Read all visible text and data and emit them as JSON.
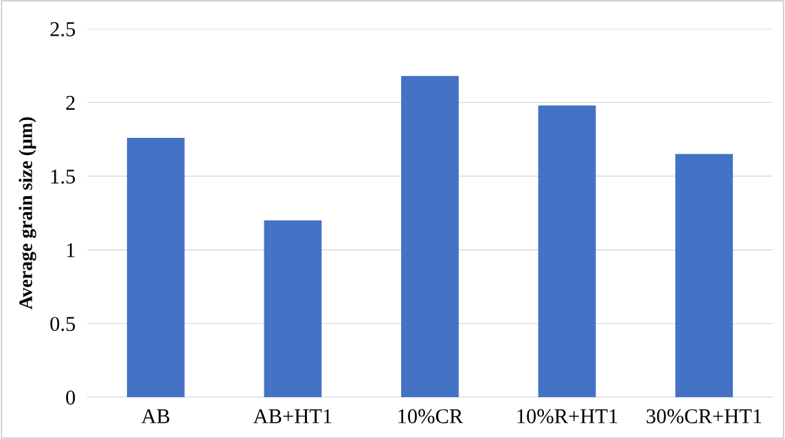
{
  "chart_data": {
    "type": "bar",
    "ylabel": "Average grain size (µm)",
    "categories": [
      "AB",
      "AB+HT1",
      "10%CR",
      "10%R+HT1",
      "30%CR+HT1"
    ],
    "values": [
      1.76,
      1.2,
      2.18,
      1.98,
      1.65
    ],
    "color": "#4472c4",
    "ylim": [
      0,
      2.5
    ],
    "yticks": [
      0,
      {
        "value": 0.5,
        "label": "0.5"
      },
      1,
      {
        "value": 1.5,
        "label": "1.5"
      },
      2,
      {
        "value": 2.5,
        "label": "2.5"
      }
    ],
    "grid": "y"
  }
}
